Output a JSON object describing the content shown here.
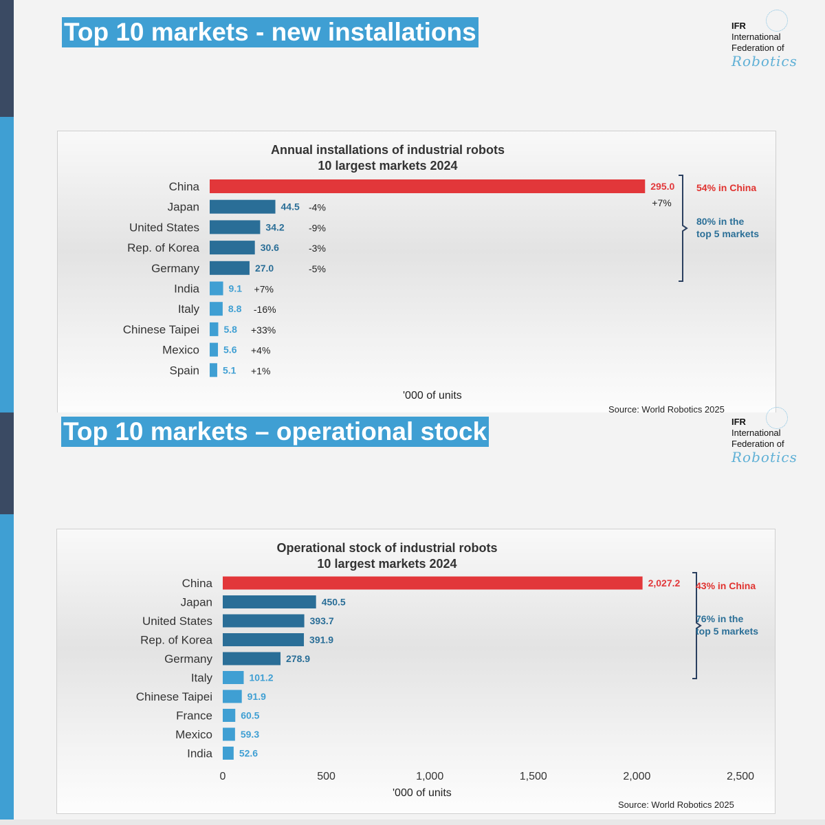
{
  "colors": {
    "china": "#e2373a",
    "top5": "#2a6e97",
    "others": "#3f9fd3",
    "banner": "#3f9fd3",
    "accent_red": "#e0322f",
    "accent_blue": "#2b6f97"
  },
  "logo": {
    "abbr": "IFR",
    "line1": "International",
    "line2": "Federation of",
    "word": "Robotics"
  },
  "slides": [
    {
      "banner": "Top 10 markets - new installations",
      "title_line1": "Annual installations of industrial robots",
      "title_line2": "10 largest markets 2024",
      "xlabel": "'000 of units",
      "source": "Source: World Robotics 2025",
      "note_china": "54% in China",
      "note_top5_line1": "80% in the",
      "note_top5_line2": "top 5 markets"
    },
    {
      "banner": "Top 10 markets – operational stock",
      "title_line1": "Operational stock of industrial robots",
      "title_line2": "10 largest markets 2024",
      "xlabel": "'000 of units",
      "source": "Source: World Robotics 2025",
      "note_china": "43% in China",
      "note_top5_line1": "76% in the",
      "note_top5_line2": "top 5 markets"
    }
  ],
  "chart_data": [
    {
      "type": "bar",
      "orientation": "horizontal",
      "title": "Annual installations of industrial robots 10 largest markets 2024",
      "xlabel": "'000 of units",
      "categories": [
        "China",
        "Japan",
        "United States",
        "Rep. of Korea",
        "Germany",
        "India",
        "Italy",
        "Chinese Taipei",
        "Mexico",
        "Spain"
      ],
      "values": [
        295.0,
        44.5,
        34.2,
        30.6,
        27.0,
        9.1,
        8.8,
        5.8,
        5.6,
        5.1
      ],
      "value_labels": [
        "295.0",
        "44.5",
        "34.2",
        "30.6",
        "27.0",
        "9.1",
        "8.8",
        "5.8",
        "5.6",
        "5.1"
      ],
      "growth": [
        "+7%",
        "-4%",
        "-9%",
        "-3%",
        "-5%",
        "+7%",
        "-16%",
        "+33%",
        "+4%",
        "+1%"
      ],
      "xlim": [
        0,
        300
      ],
      "show_xticks": false
    },
    {
      "type": "bar",
      "orientation": "horizontal",
      "title": "Operational stock of industrial robots 10 largest markets 2024",
      "xlabel": "'000 of units",
      "categories": [
        "China",
        "Japan",
        "United States",
        "Rep. of Korea",
        "Germany",
        "Italy",
        "Chinese Taipei",
        "France",
        "Mexico",
        "India"
      ],
      "values": [
        2027.2,
        450.5,
        393.7,
        391.9,
        278.9,
        101.2,
        91.9,
        60.5,
        59.3,
        52.6
      ],
      "value_labels": [
        "2,027.2",
        "450.5",
        "393.7",
        "391.9",
        "278.9",
        "101.2",
        "91.9",
        "60.5",
        "59.3",
        "52.6"
      ],
      "xlim": [
        0,
        2500
      ],
      "xticks": [
        0,
        500,
        1000,
        1500,
        2000,
        2500
      ],
      "xtick_labels": [
        "0",
        "500",
        "1,000",
        "1,500",
        "2,000",
        "2,500"
      ],
      "show_xticks": true
    }
  ]
}
